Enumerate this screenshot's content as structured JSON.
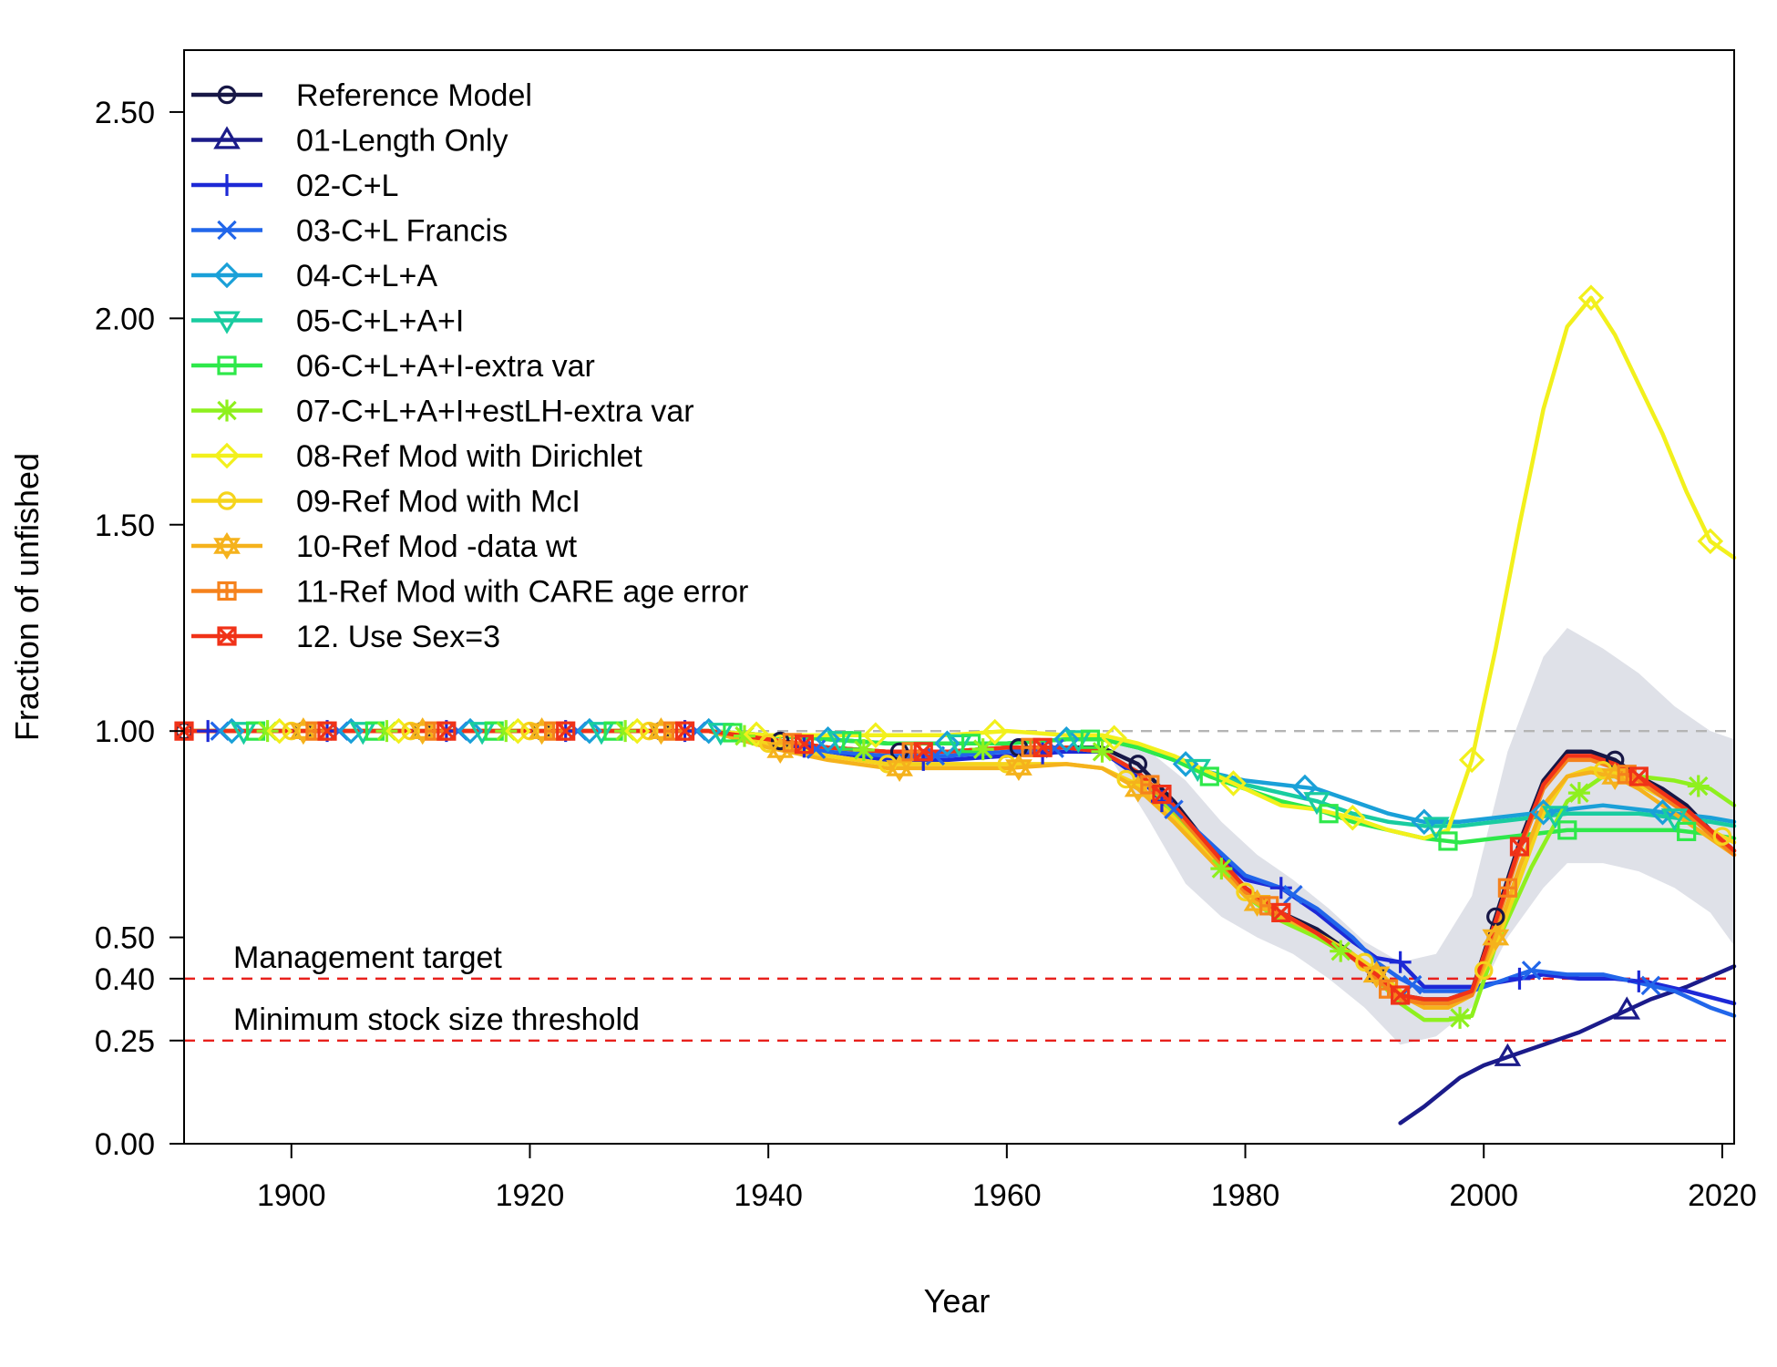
{
  "chart_data": {
    "type": "line",
    "title": "",
    "xlabel": "Year",
    "ylabel": "Fraction of unfished",
    "xlim": [
      1891,
      2021
    ],
    "ylim": [
      0,
      2.65
    ],
    "x_ticks": [
      1900,
      1920,
      1940,
      1960,
      1980,
      2000,
      2020
    ],
    "y_ticks": [
      0.0,
      0.25,
      0.4,
      0.5,
      1.0,
      1.5,
      2.0,
      2.5
    ],
    "y_tick_labels": [
      "0.00",
      "0.25",
      "0.40",
      "0.50",
      "1.00",
      "1.50",
      "2.00",
      "2.50"
    ],
    "grid": false,
    "legend_position": "top-left",
    "reference_lines": [
      {
        "y": 1.0,
        "color": "#b4b4b4",
        "label": ""
      },
      {
        "y": 0.4,
        "color": "#e8201c",
        "label": "Management target"
      },
      {
        "y": 0.25,
        "color": "#e8201c",
        "label": "Minimum stock size threshold"
      }
    ],
    "uncertainty_band": {
      "color": "#dfe1e8",
      "x": [
        1969,
        1972,
        1975,
        1978,
        1981,
        1984,
        1987,
        1990,
        1993,
        1996,
        1999,
        2002,
        2005,
        2007,
        2010,
        2013,
        2016,
        2019,
        2021
      ],
      "lower": [
        0.92,
        0.78,
        0.63,
        0.55,
        0.5,
        0.46,
        0.4,
        0.33,
        0.24,
        0.26,
        0.33,
        0.5,
        0.62,
        0.68,
        0.68,
        0.66,
        0.62,
        0.56,
        0.48
      ],
      "upper": [
        0.98,
        0.95,
        0.88,
        0.78,
        0.7,
        0.64,
        0.57,
        0.49,
        0.44,
        0.46,
        0.6,
        0.95,
        1.18,
        1.25,
        1.2,
        1.14,
        1.06,
        1.0,
        0.98
      ]
    },
    "series": [
      {
        "name": "Reference Model",
        "color": "#171746",
        "marker": "circle",
        "x": [
          1891,
          1935,
          1940,
          1945,
          1950,
          1955,
          1960,
          1965,
          1968,
          1971,
          1974,
          1977,
          1980,
          1983,
          1986,
          1989,
          1991,
          1993,
          1995,
          1997,
          1999,
          2001,
          2003,
          2005,
          2007,
          2009,
          2011,
          2013,
          2015,
          2017,
          2019,
          2021
        ],
        "y": [
          1.0,
          1.0,
          0.98,
          0.96,
          0.95,
          0.95,
          0.96,
          0.96,
          0.96,
          0.92,
          0.83,
          0.72,
          0.62,
          0.56,
          0.52,
          0.46,
          0.41,
          0.36,
          0.35,
          0.35,
          0.37,
          0.55,
          0.73,
          0.88,
          0.95,
          0.95,
          0.93,
          0.89,
          0.86,
          0.82,
          0.76,
          0.71
        ],
        "marker_x": [
          1891,
          1901,
          1911,
          1921,
          1931,
          1941,
          1951,
          1961,
          1971,
          1991,
          2001,
          2011
        ]
      },
      {
        "name": "01-Length Only",
        "color": "#1b1b8a",
        "marker": "triangle",
        "x": [
          1993,
          1995,
          1998,
          2000,
          2002,
          2005,
          2008,
          2011,
          2014,
          2017,
          2021
        ],
        "y": [
          0.05,
          0.09,
          0.16,
          0.19,
          0.21,
          0.24,
          0.27,
          0.31,
          0.35,
          0.38,
          0.43
        ],
        "marker_x": [
          2002,
          2012
        ]
      },
      {
        "name": "02-C+L",
        "color": "#1d29d6",
        "marker": "plus",
        "x": [
          1891,
          1935,
          1940,
          1945,
          1950,
          1955,
          1960,
          1965,
          1968,
          1971,
          1974,
          1977,
          1980,
          1983,
          1986,
          1989,
          1991,
          1993,
          1995,
          1997,
          1999,
          2001,
          2003,
          2005,
          2008,
          2011,
          2014,
          2017,
          2021
        ],
        "y": [
          1.0,
          1.0,
          0.98,
          0.95,
          0.93,
          0.93,
          0.94,
          0.95,
          0.95,
          0.89,
          0.8,
          0.72,
          0.64,
          0.62,
          0.56,
          0.49,
          0.45,
          0.44,
          0.38,
          0.38,
          0.38,
          0.39,
          0.4,
          0.41,
          0.4,
          0.4,
          0.39,
          0.37,
          0.34
        ],
        "marker_x": [
          1893,
          1903,
          1913,
          1923,
          1933,
          1943,
          1953,
          1963,
          1973,
          1983,
          1993,
          2003,
          2013
        ]
      },
      {
        "name": "03-C+L Francis",
        "color": "#2166ea",
        "marker": "x",
        "x": [
          1891,
          1935,
          1940,
          1945,
          1950,
          1955,
          1960,
          1965,
          1968,
          1971,
          1974,
          1977,
          1980,
          1983,
          1986,
          1989,
          1991,
          1993,
          1995,
          1997,
          1999,
          2001,
          2004,
          2007,
          2010,
          2013,
          2016,
          2019,
          2021
        ],
        "y": [
          1.0,
          1.0,
          0.98,
          0.95,
          0.94,
          0.94,
          0.95,
          0.96,
          0.95,
          0.9,
          0.81,
          0.73,
          0.65,
          0.62,
          0.57,
          0.5,
          0.44,
          0.4,
          0.37,
          0.37,
          0.37,
          0.39,
          0.42,
          0.41,
          0.41,
          0.39,
          0.37,
          0.33,
          0.31
        ],
        "marker_x": [
          1894,
          1904,
          1914,
          1924,
          1934,
          1944,
          1954,
          1964,
          1974,
          1984,
          1994,
          2004,
          2014
        ]
      },
      {
        "name": "04-C+L+A",
        "color": "#1aa0d8",
        "marker": "diamond",
        "x": [
          1891,
          1935,
          1940,
          1945,
          1950,
          1955,
          1960,
          1965,
          1968,
          1971,
          1974,
          1977,
          1980,
          1983,
          1986,
          1989,
          1992,
          1995,
          1998,
          2001,
          2004,
          2007,
          2010,
          2013,
          2016,
          2019,
          2021
        ],
        "y": [
          1.0,
          1.0,
          0.99,
          0.98,
          0.97,
          0.97,
          0.97,
          0.98,
          0.98,
          0.96,
          0.93,
          0.9,
          0.88,
          0.87,
          0.86,
          0.83,
          0.8,
          0.78,
          0.78,
          0.79,
          0.8,
          0.81,
          0.82,
          0.81,
          0.8,
          0.79,
          0.78
        ],
        "marker_x": [
          1895,
          1905,
          1915,
          1925,
          1935,
          1945,
          1955,
          1965,
          1975,
          1985,
          1995,
          2005,
          2015
        ]
      },
      {
        "name": "05-C+L+A+I",
        "color": "#19cca0",
        "marker": "triangle-down",
        "x": [
          1891,
          1935,
          1940,
          1945,
          1950,
          1955,
          1960,
          1965,
          1968,
          1971,
          1974,
          1977,
          1980,
          1983,
          1986,
          1989,
          1992,
          1995,
          1998,
          2001,
          2004,
          2007,
          2010,
          2013,
          2016,
          2019,
          2021
        ],
        "y": [
          1.0,
          1.0,
          0.99,
          0.98,
          0.97,
          0.97,
          0.97,
          0.98,
          0.98,
          0.96,
          0.93,
          0.9,
          0.87,
          0.85,
          0.83,
          0.8,
          0.78,
          0.77,
          0.77,
          0.78,
          0.79,
          0.8,
          0.8,
          0.8,
          0.79,
          0.78,
          0.77
        ],
        "marker_x": [
          1896,
          1906,
          1916,
          1926,
          1936,
          1946,
          1956,
          1966,
          1976,
          1986,
          1996,
          2006,
          2016
        ]
      },
      {
        "name": "06-C+L+A+I-extra var",
        "color": "#2ee84a",
        "marker": "square",
        "x": [
          1891,
          1935,
          1940,
          1945,
          1950,
          1955,
          1960,
          1965,
          1968,
          1971,
          1974,
          1977,
          1980,
          1983,
          1986,
          1989,
          1992,
          1995,
          1998,
          2001,
          2004,
          2007,
          2010,
          2013,
          2016,
          2019,
          2021
        ],
        "y": [
          1.0,
          1.0,
          0.99,
          0.98,
          0.97,
          0.97,
          0.97,
          0.98,
          0.98,
          0.96,
          0.93,
          0.89,
          0.86,
          0.83,
          0.81,
          0.78,
          0.76,
          0.74,
          0.73,
          0.74,
          0.75,
          0.76,
          0.76,
          0.76,
          0.76,
          0.75,
          0.74
        ],
        "marker_x": [
          1897,
          1907,
          1917,
          1927,
          1937,
          1947,
          1957,
          1967,
          1977,
          1987,
          1997,
          2007,
          2017
        ]
      },
      {
        "name": "07-C+L+A+I+estLH-extra var",
        "color": "#8ef01e",
        "marker": "star",
        "x": [
          1891,
          1935,
          1940,
          1945,
          1950,
          1955,
          1960,
          1965,
          1968,
          1971,
          1974,
          1977,
          1980,
          1983,
          1986,
          1989,
          1991,
          1993,
          1995,
          1997,
          1999,
          2001,
          2004,
          2007,
          2010,
          2013,
          2016,
          2019,
          2021
        ],
        "y": [
          1.0,
          1.0,
          0.98,
          0.96,
          0.95,
          0.95,
          0.96,
          0.96,
          0.95,
          0.9,
          0.8,
          0.7,
          0.6,
          0.54,
          0.5,
          0.45,
          0.4,
          0.34,
          0.3,
          0.3,
          0.31,
          0.48,
          0.67,
          0.83,
          0.89,
          0.89,
          0.88,
          0.86,
          0.82
        ],
        "marker_x": [
          1898,
          1908,
          1918,
          1928,
          1938,
          1948,
          1958,
          1968,
          1978,
          1988,
          1998,
          2008,
          2018
        ]
      },
      {
        "name": "08-Ref Mod with Dirichlet",
        "color": "#f2f01c",
        "marker": "diamond",
        "x": [
          1891,
          1935,
          1940,
          1945,
          1950,
          1955,
          1960,
          1965,
          1968,
          1971,
          1974,
          1977,
          1980,
          1983,
          1986,
          1989,
          1992,
          1995,
          1997,
          1999,
          2001,
          2003,
          2005,
          2007,
          2009,
          2011,
          2013,
          2015,
          2017,
          2019,
          2021
        ],
        "y": [
          1.0,
          1.0,
          0.99,
          0.99,
          0.99,
          0.99,
          1.0,
          0.99,
          0.99,
          0.97,
          0.94,
          0.9,
          0.86,
          0.82,
          0.81,
          0.79,
          0.76,
          0.74,
          0.76,
          0.93,
          1.2,
          1.5,
          1.78,
          1.98,
          2.05,
          1.96,
          1.84,
          1.72,
          1.58,
          1.46,
          1.42
        ],
        "marker_x": [
          1899,
          1909,
          1919,
          1929,
          1939,
          1949,
          1959,
          1969,
          1979,
          1989,
          1999,
          2009,
          2019
        ]
      },
      {
        "name": "09-Ref Mod with McI",
        "color": "#f5d41c",
        "marker": "circle",
        "x": [
          1891,
          1935,
          1940,
          1945,
          1950,
          1955,
          1960,
          1965,
          1968,
          1971,
          1974,
          1977,
          1980,
          1983,
          1986,
          1989,
          1991,
          1993,
          1995,
          1997,
          1999,
          2001,
          2003,
          2005,
          2007,
          2009,
          2011,
          2013,
          2015,
          2017,
          2019,
          2021
        ],
        "y": [
          1.0,
          1.0,
          0.97,
          0.94,
          0.92,
          0.92,
          0.92,
          0.92,
          0.91,
          0.87,
          0.79,
          0.7,
          0.61,
          0.56,
          0.51,
          0.46,
          0.42,
          0.37,
          0.33,
          0.33,
          0.36,
          0.48,
          0.64,
          0.8,
          0.89,
          0.91,
          0.9,
          0.87,
          0.84,
          0.8,
          0.76,
          0.73
        ],
        "marker_x": [
          1900,
          1910,
          1920,
          1930,
          1940,
          1950,
          1960,
          1970,
          1980,
          1990,
          2000,
          2010,
          2020
        ]
      },
      {
        "name": "10-Ref Mod -data wt",
        "color": "#f5b21c",
        "marker": "star-square",
        "x": [
          1891,
          1935,
          1940,
          1945,
          1950,
          1955,
          1960,
          1965,
          1968,
          1971,
          1974,
          1977,
          1980,
          1983,
          1986,
          1989,
          1991,
          1993,
          1995,
          1997,
          1999,
          2001,
          2003,
          2005,
          2007,
          2009,
          2011,
          2013,
          2015,
          2017,
          2019,
          2021
        ],
        "y": [
          1.0,
          1.0,
          0.96,
          0.93,
          0.91,
          0.91,
          0.91,
          0.92,
          0.91,
          0.86,
          0.78,
          0.69,
          0.6,
          0.55,
          0.51,
          0.45,
          0.41,
          0.36,
          0.33,
          0.33,
          0.36,
          0.5,
          0.67,
          0.82,
          0.89,
          0.9,
          0.89,
          0.86,
          0.82,
          0.78,
          0.74,
          0.7
        ],
        "marker_x": [
          1901,
          1911,
          1921,
          1931,
          1941,
          1951,
          1961,
          1971,
          1981,
          1991,
          2001,
          2011
        ]
      },
      {
        "name": "11-Ref Mod with CARE age error",
        "color": "#f5821c",
        "marker": "square-plus",
        "x": [
          1891,
          1935,
          1940,
          1945,
          1950,
          1955,
          1960,
          1965,
          1968,
          1971,
          1974,
          1977,
          1980,
          1983,
          1986,
          1989,
          1991,
          1993,
          1995,
          1997,
          1999,
          2001,
          2003,
          2005,
          2007,
          2009,
          2011,
          2013,
          2015,
          2017,
          2019,
          2021
        ],
        "y": [
          1.0,
          1.0,
          0.98,
          0.96,
          0.95,
          0.95,
          0.96,
          0.96,
          0.95,
          0.9,
          0.81,
          0.71,
          0.61,
          0.56,
          0.51,
          0.45,
          0.4,
          0.35,
          0.34,
          0.34,
          0.36,
          0.53,
          0.71,
          0.86,
          0.93,
          0.93,
          0.91,
          0.88,
          0.84,
          0.8,
          0.75,
          0.7
        ],
        "marker_x": [
          1902,
          1912,
          1922,
          1932,
          1942,
          1952,
          1962,
          1972,
          1982,
          1992,
          2002,
          2012
        ]
      },
      {
        "name": "12. Use Sex=3",
        "color": "#f03218",
        "marker": "x-square",
        "x": [
          1891,
          1935,
          1940,
          1945,
          1950,
          1955,
          1960,
          1965,
          1968,
          1971,
          1974,
          1977,
          1980,
          1983,
          1986,
          1989,
          1991,
          1993,
          1995,
          1997,
          1999,
          2001,
          2003,
          2005,
          2007,
          2009,
          2011,
          2013,
          2015,
          2017,
          2019,
          2021
        ],
        "y": [
          1.0,
          1.0,
          0.98,
          0.96,
          0.95,
          0.95,
          0.96,
          0.96,
          0.95,
          0.9,
          0.82,
          0.72,
          0.62,
          0.56,
          0.51,
          0.45,
          0.41,
          0.36,
          0.35,
          0.35,
          0.37,
          0.54,
          0.72,
          0.87,
          0.94,
          0.94,
          0.92,
          0.89,
          0.85,
          0.81,
          0.76,
          0.71
        ],
        "marker_x": [
          1891,
          1903,
          1913,
          1923,
          1933,
          1943,
          1953,
          1963,
          1973,
          1983,
          1993,
          2003,
          2013
        ]
      }
    ]
  }
}
